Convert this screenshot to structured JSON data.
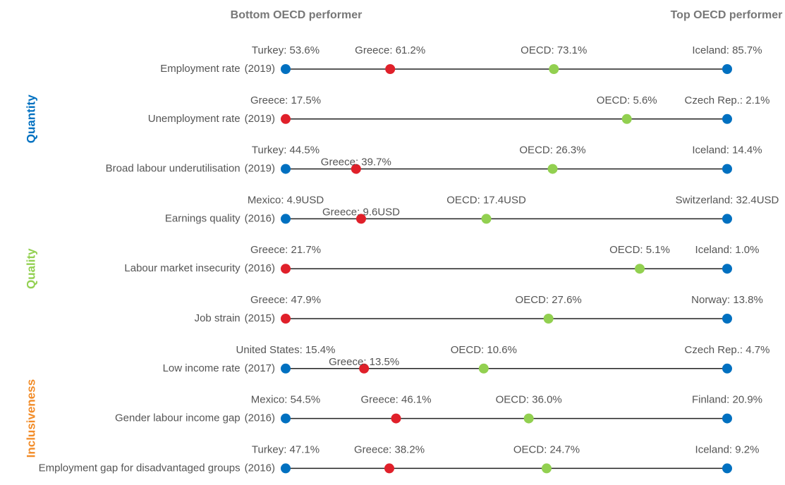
{
  "chart_data": {
    "type": "dot",
    "header_left": "Bottom OECD performer",
    "header_right": "Top OECD performer",
    "groups": [
      {
        "name": "Quantity",
        "color": "#0070c0",
        "rows": [
          0,
          1,
          2
        ]
      },
      {
        "name": "Quality",
        "color": "#92d050",
        "rows": [
          3,
          4,
          5
        ]
      },
      {
        "name": "Inclusiveness",
        "color": "#f28c28",
        "rows": [
          6,
          7,
          8
        ]
      }
    ],
    "line_color": "#222",
    "rows": [
      {
        "label": "Employment rate",
        "year": "(2019)",
        "points": [
          {
            "value": 53.6,
            "label": "Turkey: 53.6%",
            "color": "#0070c0"
          },
          {
            "value": 61.2,
            "label": "Greece: 61.2%",
            "color": "#e0202a"
          },
          {
            "value": 73.1,
            "label": "OECD: 73.1%",
            "color": "#92d050"
          },
          {
            "value": 85.7,
            "label": "Iceland: 85.7%",
            "color": "#0070c0"
          }
        ]
      },
      {
        "label": "Unemployment rate",
        "year": "(2019)",
        "points": [
          {
            "value": 17.5,
            "label": "Greece: 17.5%",
            "color": "#e0202a"
          },
          {
            "value": 5.6,
            "label": "OECD: 5.6%",
            "color": "#92d050"
          },
          {
            "value": 2.1,
            "label": "Czech Rep.: 2.1%",
            "color": "#0070c0"
          }
        ]
      },
      {
        "label": "Broad labour underutilisation",
        "year": "(2019)",
        "points": [
          {
            "value": 44.5,
            "label": "Turkey: 44.5%",
            "color": "#0070c0"
          },
          {
            "value": 39.7,
            "label": "Greece: 39.7%",
            "color": "#e0202a"
          },
          {
            "value": 26.3,
            "label": "OECD: 26.3%",
            "color": "#92d050"
          },
          {
            "value": 14.4,
            "label": "Iceland: 14.4%",
            "color": "#0070c0"
          }
        ]
      },
      {
        "label": "Earnings quality",
        "year": "(2016)",
        "points": [
          {
            "value": 4.9,
            "label": "Mexico: 4.9USD",
            "color": "#0070c0"
          },
          {
            "value": 9.6,
            "label": "Greece: 9.6USD",
            "color": "#e0202a"
          },
          {
            "value": 17.4,
            "label": "OECD: 17.4USD",
            "color": "#92d050"
          },
          {
            "value": 32.4,
            "label": "Switzerland: 32.4USD",
            "color": "#0070c0"
          }
        ]
      },
      {
        "label": "Labour market insecurity",
        "year": "(2016)",
        "points": [
          {
            "value": 21.7,
            "label": "Greece: 21.7%",
            "color": "#e0202a"
          },
          {
            "value": 5.1,
            "label": "OECD: 5.1%",
            "color": "#92d050"
          },
          {
            "value": 1.0,
            "label": "Iceland: 1.0%",
            "color": "#0070c0"
          }
        ]
      },
      {
        "label": "Job strain",
        "year": "(2015)",
        "points": [
          {
            "value": 47.9,
            "label": "Greece: 47.9%",
            "color": "#e0202a"
          },
          {
            "value": 27.6,
            "label": "OECD: 27.6%",
            "color": "#92d050"
          },
          {
            "value": 13.8,
            "label": "Norway: 13.8%",
            "color": "#0070c0"
          }
        ]
      },
      {
        "label": "Low income rate",
        "year": "(2017)",
        "points": [
          {
            "value": 15.4,
            "label": "United States: 15.4%",
            "color": "#0070c0"
          },
          {
            "value": 13.5,
            "label": "Greece: 13.5%",
            "color": "#e0202a"
          },
          {
            "value": 10.6,
            "label": "OECD: 10.6%",
            "color": "#92d050"
          },
          {
            "value": 4.7,
            "label": "Czech Rep.: 4.7%",
            "color": "#0070c0"
          }
        ]
      },
      {
        "label": "Gender labour income gap",
        "year": "(2016)",
        "points": [
          {
            "value": 54.5,
            "label": "Mexico: 54.5%",
            "color": "#0070c0"
          },
          {
            "value": 46.1,
            "label": "Greece: 46.1%",
            "color": "#e0202a"
          },
          {
            "value": 36.0,
            "label": "OECD: 36.0%",
            "color": "#92d050"
          },
          {
            "value": 20.9,
            "label": "Finland: 20.9%",
            "color": "#0070c0"
          }
        ]
      },
      {
        "label": "Employment gap for disadvantaged groups",
        "year": "(2016)",
        "points": [
          {
            "value": 47.1,
            "label": "Turkey: 47.1%",
            "color": "#0070c0"
          },
          {
            "value": 38.2,
            "label": "Greece: 38.2%",
            "color": "#e0202a"
          },
          {
            "value": 24.7,
            "label": "OECD: 24.7%",
            "color": "#92d050"
          },
          {
            "value": 9.2,
            "label": "Iceland: 9.2%",
            "color": "#0070c0"
          }
        ]
      }
    ]
  }
}
